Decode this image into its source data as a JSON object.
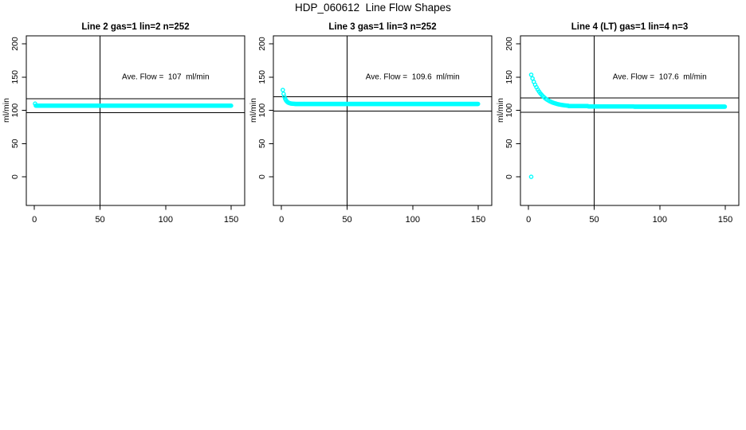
{
  "figure": {
    "title": "HDP_060612  Line Flow Shapes",
    "background_color": "#ffffff",
    "axis_color": "#000000",
    "marker_color": "#00ffff"
  },
  "chart_data": [
    {
      "type": "scatter",
      "title": "Line 2 gas=1 lin=2 n=252",
      "n": 252,
      "annotation": "Ave. Flow =  107  ml/min",
      "ave_flow_ml_min": 107,
      "ylabel": "ml/min",
      "xlabel": "",
      "grid": false,
      "legend": null,
      "x_ticks": [
        0,
        50,
        100,
        150
      ],
      "y_ticks": [
        0,
        50,
        100,
        150,
        200
      ],
      "xlim": [
        -6.2,
        160.3
      ],
      "ylim": [
        -43,
        212
      ],
      "vline_x": 50,
      "hline_upper": 117.7,
      "hline_lower": 96.3,
      "annotation_pos": [
        100,
        150
      ],
      "marker": "open-circle",
      "series": [
        {
          "name": "line-2-flow",
          "head_points": [
            [
              0.5,
              110
            ]
          ],
          "runs": [
            {
              "x_from": 1.1,
              "x_to": 150,
              "x_step": 0.6,
              "y": 107
            }
          ],
          "extra_points": []
        }
      ]
    },
    {
      "type": "scatter",
      "title": "Line 3 gas=1 lin=3 n=252",
      "n": 252,
      "annotation": "Ave. Flow =  109.6  ml/min",
      "ave_flow_ml_min": 109.6,
      "ylabel": "ml/min",
      "xlabel": "",
      "grid": false,
      "legend": null,
      "x_ticks": [
        0,
        50,
        100,
        150
      ],
      "y_ticks": [
        0,
        50,
        100,
        150,
        200
      ],
      "xlim": [
        -6.2,
        160.3
      ],
      "ylim": [
        -43,
        212
      ],
      "vline_x": 50,
      "hline_upper": 120.6,
      "hline_lower": 98.6,
      "annotation_pos": [
        100,
        150
      ],
      "marker": "open-circle",
      "series": [
        {
          "name": "line-3-flow",
          "head_points": [
            [
              1,
              130.6
            ],
            [
              1.6,
              124.7
            ],
            [
              2.2,
              120.4
            ],
            [
              2.8,
              117.3
            ],
            [
              3.4,
              115.1
            ],
            [
              4,
              113.6
            ],
            [
              4.6,
              112.4
            ],
            [
              5.2,
              111.6
            ],
            [
              5.8,
              111.1
            ],
            [
              6.4,
              110.6
            ],
            [
              7,
              110.3
            ],
            [
              7.6,
              110.1
            ],
            [
              8.2,
              110
            ],
            [
              8.8,
              109.9
            ],
            [
              9.4,
              109.8
            ],
            [
              10,
              109.7
            ]
          ],
          "runs": [
            {
              "x_from": 10.6,
              "x_to": 150,
              "x_step": 0.6,
              "y": 109.6
            }
          ],
          "extra_points": []
        }
      ]
    },
    {
      "type": "scatter",
      "title": "Line 4 (LT) gas=1 lin=4 n=3",
      "n": 3,
      "annotation": "Ave. Flow =  107.6  ml/min",
      "ave_flow_ml_min": 107.6,
      "ylabel": "ml/min",
      "xlabel": "",
      "grid": false,
      "legend": null,
      "x_ticks": [
        0,
        50,
        100,
        150
      ],
      "y_ticks": [
        0,
        50,
        100,
        150,
        200
      ],
      "xlim": [
        -6.2,
        160.3
      ],
      "ylim": [
        -43,
        212
      ],
      "vline_x": 50,
      "hline_upper": 118.4,
      "hline_lower": 96.8,
      "annotation_pos": [
        100,
        150
      ],
      "marker": "open-circle",
      "series": [
        {
          "name": "line-4-flow",
          "head_points": [
            [
              2,
              153.5
            ],
            [
              3,
              147.9
            ],
            [
              4,
              142.9
            ],
            [
              5,
              138.5
            ],
            [
              6,
              134.7
            ],
            [
              7,
              131.2
            ],
            [
              8,
              128.2
            ],
            [
              9,
              125.5
            ],
            [
              10,
              123.2
            ],
            [
              11,
              121.1
            ],
            [
              12,
              119.3
            ],
            [
              13,
              117.6
            ],
            [
              14,
              116.2
            ],
            [
              15,
              115
            ],
            [
              16,
              113.8
            ],
            [
              17,
              112.9
            ],
            [
              18,
              112
            ],
            [
              19,
              111.2
            ],
            [
              20,
              110.6
            ],
            [
              21,
              110
            ],
            [
              22,
              109.4
            ],
            [
              23,
              109
            ],
            [
              24,
              108.6
            ],
            [
              25,
              108.2
            ],
            [
              26,
              107.9
            ],
            [
              27,
              107.6
            ],
            [
              28,
              107.4
            ],
            [
              29,
              107.2
            ],
            [
              30,
              107
            ]
          ],
          "runs": [
            {
              "x_from": 30.6,
              "x_to": 45,
              "x_step": 0.6,
              "y": 106.5
            },
            {
              "x_from": 45.6,
              "x_to": 80,
              "x_step": 0.6,
              "y": 105.9
            },
            {
              "x_from": 80.6,
              "x_to": 150,
              "x_step": 0.6,
              "y": 105.5
            }
          ],
          "extra_points": [
            [
              2,
              0
            ]
          ]
        }
      ]
    }
  ]
}
